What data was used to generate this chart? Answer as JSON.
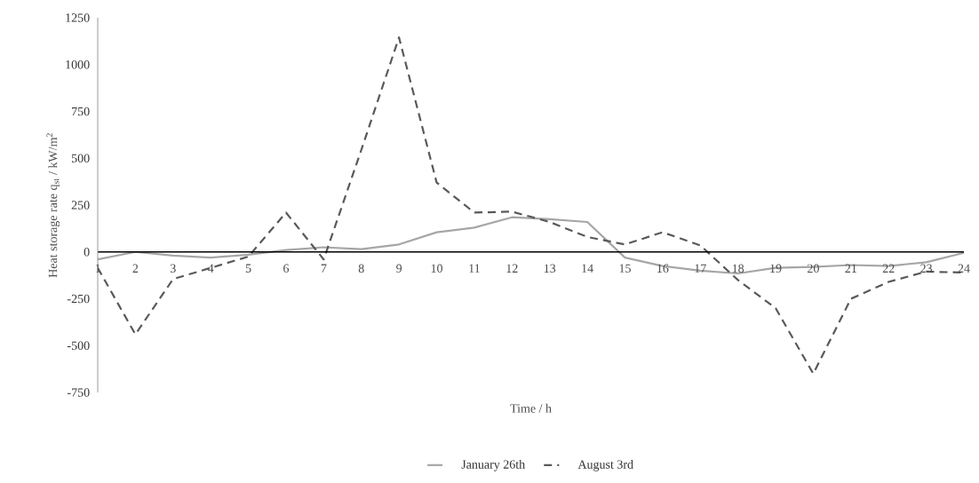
{
  "chart_data": {
    "type": "line",
    "xlabel": "Time / h",
    "ylabel": "Heat storage rate q$_{st}$ / kW/m$^{2}$",
    "categories": [
      "1",
      "2",
      "3",
      "4",
      "5",
      "6",
      "7",
      "8",
      "9",
      "10",
      "11",
      "12",
      "13",
      "14",
      "15",
      "16",
      "17",
      "18",
      "19",
      "20",
      "21",
      "22",
      "23",
      "24"
    ],
    "series": [
      {
        "name": "January 26th",
        "color": "#a6a6a6",
        "line_style": "solid",
        "values": [
          -40,
          0,
          -20,
          -30,
          -15,
          10,
          25,
          15,
          40,
          105,
          130,
          185,
          175,
          160,
          -30,
          -75,
          -100,
          -115,
          -85,
          -80,
          -70,
          -75,
          -55,
          -5
        ]
      },
      {
        "name": "August 3rd",
        "color": "#595959",
        "line_style": "dashed",
        "values": [
          -85,
          -440,
          -145,
          -85,
          -25,
          210,
          -40,
          545,
          1145,
          370,
          210,
          215,
          160,
          80,
          40,
          105,
          35,
          -150,
          -300,
          -650,
          -250,
          -160,
          -105,
          -110
        ]
      }
    ],
    "ylim": [
      -750,
      1250
    ],
    "yticks": [
      -750,
      -500,
      -250,
      0,
      250,
      500,
      750,
      1000,
      1250
    ],
    "grid": false,
    "legend": "bottom",
    "marker": "none"
  }
}
